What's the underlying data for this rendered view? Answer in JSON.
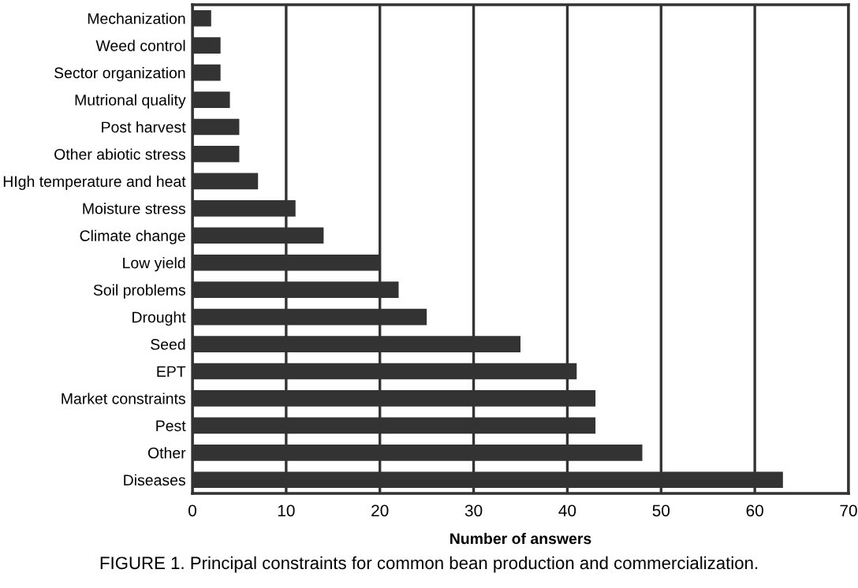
{
  "chart_data": {
    "type": "bar",
    "orientation": "horizontal",
    "categories": [
      "Mechanization",
      "Weed control",
      "Sector organization",
      "Mutrional quality",
      "Post harvest",
      "Other abiotic stress",
      "HIgh temperature and heat",
      "Moisture stress",
      "Climate change",
      "Low yield",
      "Soil problems",
      "Drought",
      "Seed",
      "EPT",
      "Market constraints",
      "Pest",
      "Other",
      "Diseases"
    ],
    "values": [
      2,
      3,
      3,
      4,
      5,
      5,
      7,
      11,
      14,
      20,
      22,
      25,
      35,
      41,
      43,
      43,
      48,
      63
    ],
    "color": "#333333",
    "xlabel": "Number of answers",
    "xlim": [
      0,
      70
    ],
    "xticks": [
      0,
      10,
      20,
      30,
      40,
      50,
      60,
      70
    ],
    "grid": "x",
    "annotations": [
      "FIGURE 1. Principal constraints for common bean production and commercialization."
    ]
  }
}
